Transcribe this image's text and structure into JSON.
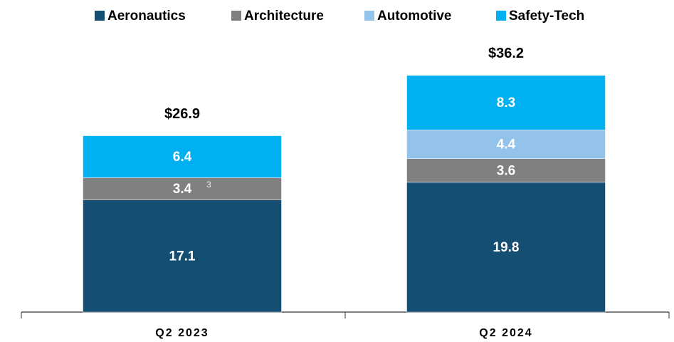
{
  "chart_data": {
    "type": "stacked_bar",
    "categories": [
      "Q2 2023",
      "Q2 2024"
    ],
    "series": [
      {
        "name": "Aeronautics",
        "color": "#144e73",
        "values": [
          17.1,
          19.8
        ]
      },
      {
        "name": "Architecture",
        "color": "#808080",
        "values": [
          3.4,
          3.6
        ]
      },
      {
        "name": "Automotive",
        "color": "#93c3ea",
        "values": [
          null,
          4.4
        ]
      },
      {
        "name": "Safety-Tech",
        "color": "#00b0f0",
        "values": [
          6.4,
          8.3
        ]
      }
    ],
    "totals": [
      26.9,
      36.2
    ],
    "total_labels": [
      "$26.9",
      "$36.2"
    ],
    "footnote_marker": "3"
  }
}
